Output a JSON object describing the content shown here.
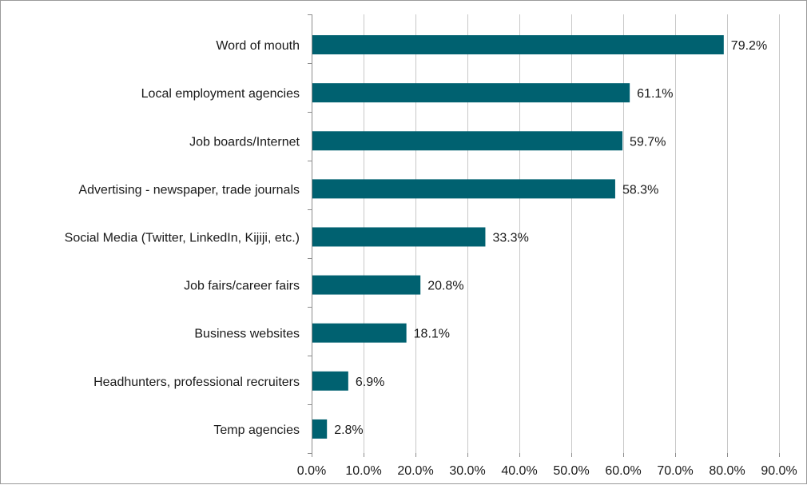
{
  "chart_data": {
    "type": "bar",
    "orientation": "horizontal",
    "categories": [
      "Word of mouth",
      "Local employment agencies",
      "Job boards/Internet",
      "Advertising - newspaper, trade journals",
      "Social Media (Twitter, LinkedIn, Kijiji, etc.)",
      "Job fairs/career fairs",
      "Business websites",
      "Headhunters, professional recruiters",
      "Temp agencies"
    ],
    "values": [
      79.2,
      61.1,
      59.7,
      58.3,
      33.3,
      20.8,
      18.1,
      6.9,
      2.8
    ],
    "value_labels": [
      "79.2%",
      "61.1%",
      "59.7%",
      "58.3%",
      "33.3%",
      "20.8%",
      "18.1%",
      "6.9%",
      "2.8%"
    ],
    "x_ticks": [
      "0.0%",
      "10.0%",
      "20.0%",
      "30.0%",
      "40.0%",
      "50.0%",
      "60.0%",
      "70.0%",
      "80.0%",
      "90.0%"
    ],
    "xlim": [
      0,
      90
    ],
    "grid": "vertical",
    "bar_color": "#006170"
  }
}
